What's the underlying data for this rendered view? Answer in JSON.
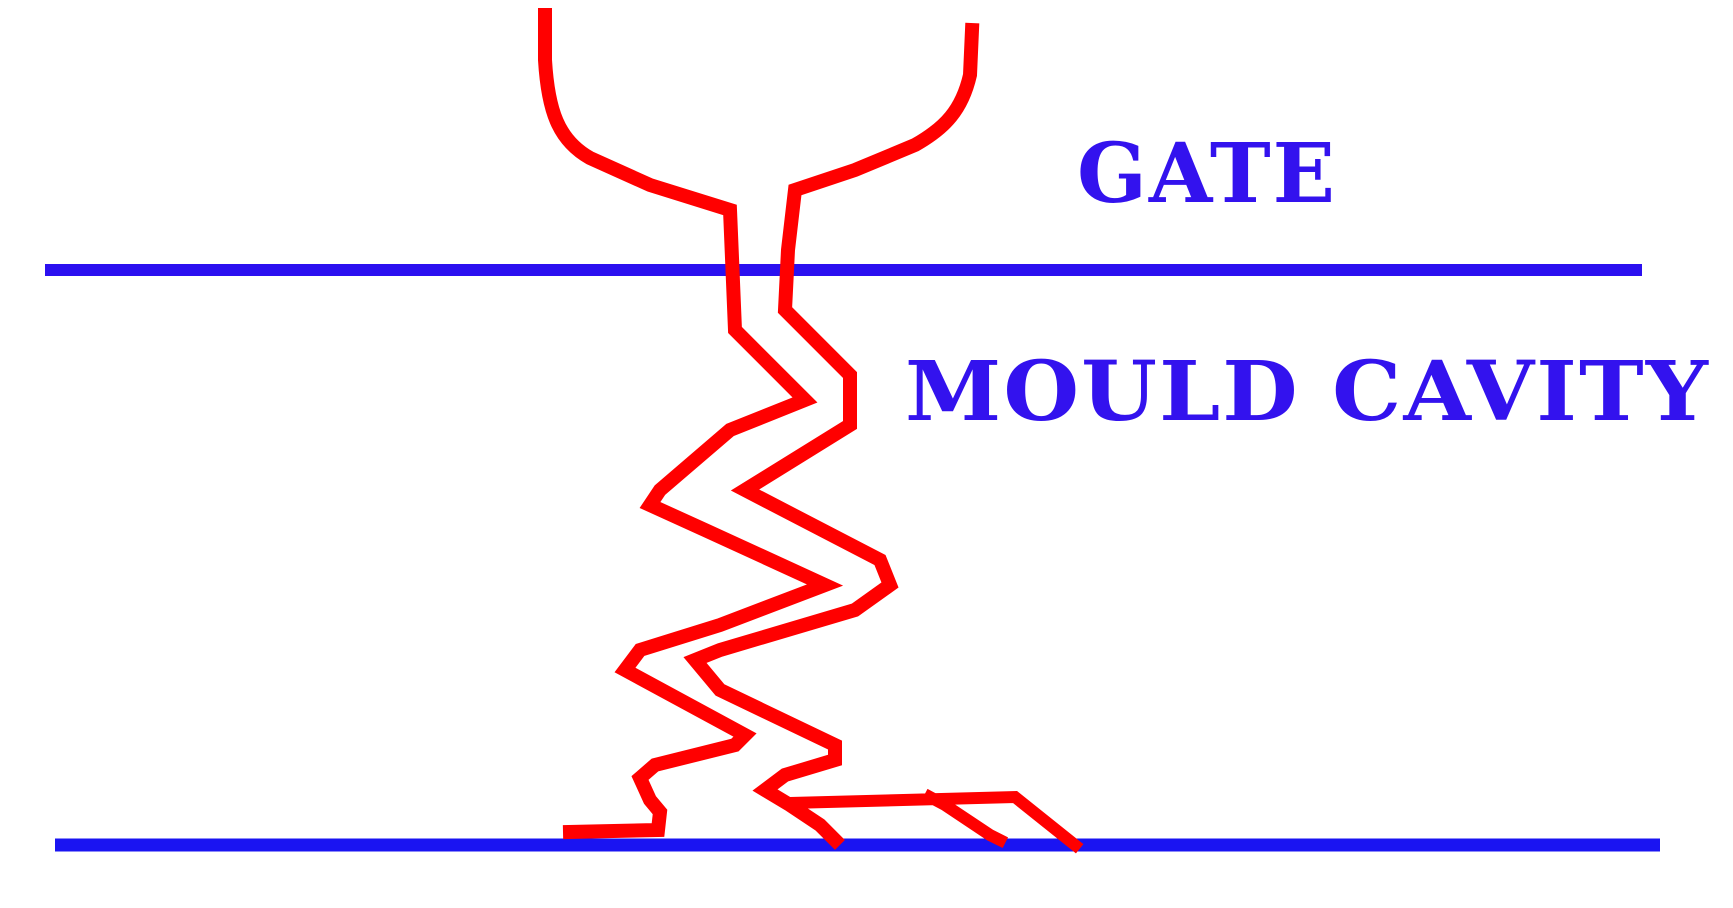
{
  "labels": {
    "gate": "GATE",
    "mould_cavity": "MOULD CAVITY"
  },
  "colors": {
    "boundary_line": "#2b10f0",
    "bottom_line": "#1a14f2",
    "label": "#3312ee",
    "flow": "#ff0000"
  }
}
